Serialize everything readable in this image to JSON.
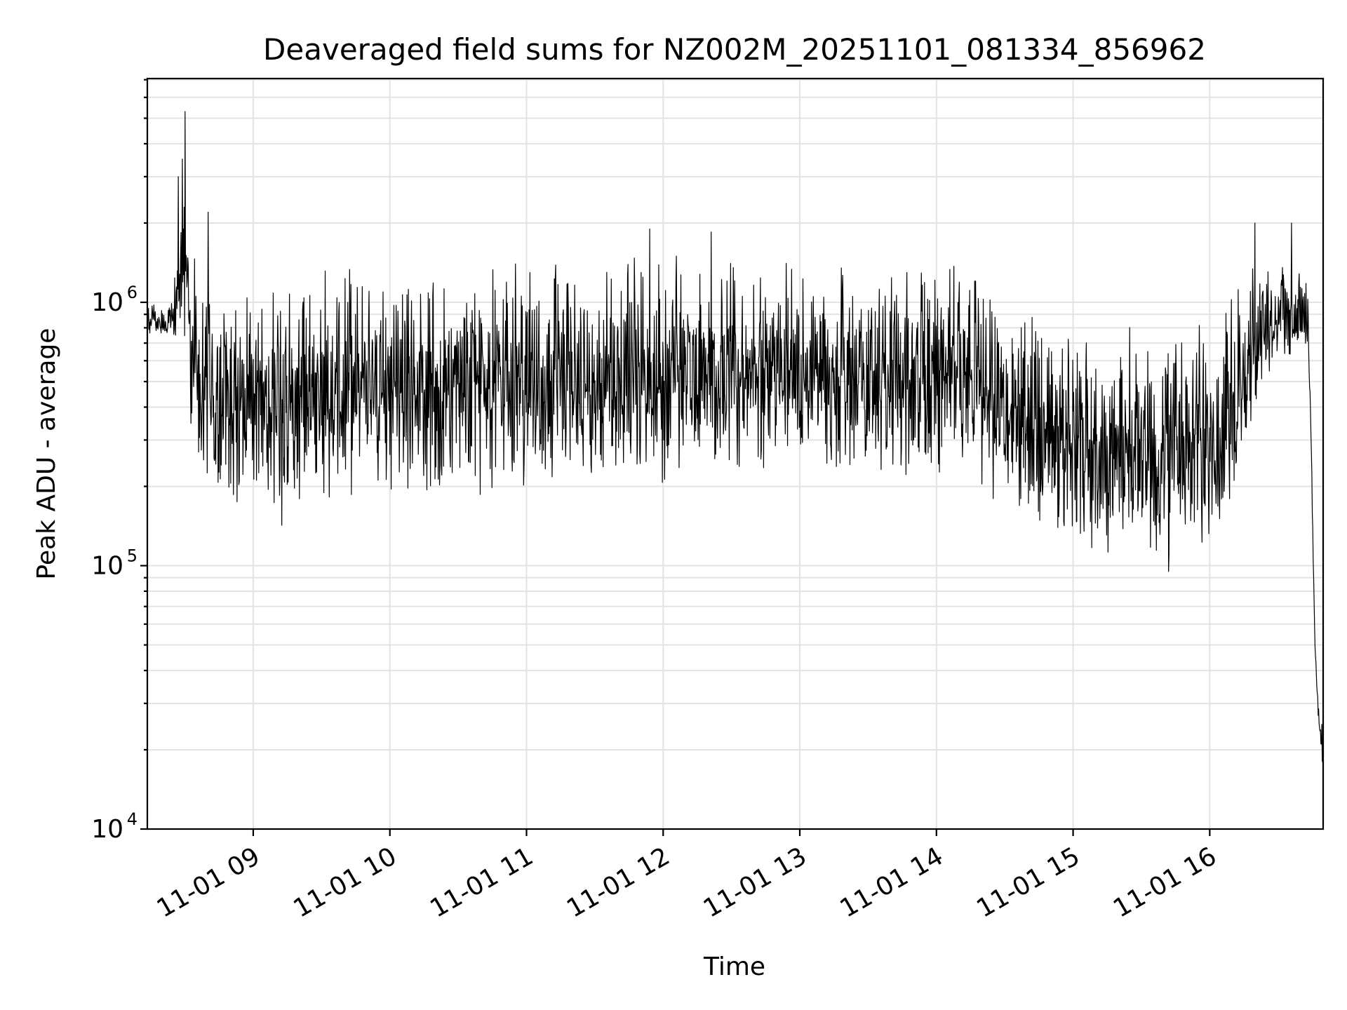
{
  "chart_data": {
    "type": "line",
    "title": "Deaveraged field sums for NZ002M_20251101_081334_856962",
    "xlabel": "Time",
    "ylabel": "Peak ADU - average",
    "yscale": "log",
    "ylim": [
      10000,
      7000000
    ],
    "xlim_hours": [
      8.225,
      16.83
    ],
    "grid": true,
    "line_color": "#000000",
    "x_ticks": [
      {
        "label": "11-01 09",
        "hour": 9
      },
      {
        "label": "11-01 10",
        "hour": 10
      },
      {
        "label": "11-01 11",
        "hour": 11
      },
      {
        "label": "11-01 12",
        "hour": 12
      },
      {
        "label": "11-01 13",
        "hour": 13
      },
      {
        "label": "11-01 14",
        "hour": 14
      },
      {
        "label": "11-01 15",
        "hour": 15
      },
      {
        "label": "11-01 16",
        "hour": 16
      }
    ],
    "y_ticks": [
      {
        "base": "10",
        "exp": "4",
        "value": 10000
      },
      {
        "base": "10",
        "exp": "5",
        "value": 100000
      },
      {
        "base": "10",
        "exp": "6",
        "value": 1000000
      }
    ],
    "series": [
      {
        "envelope": {
          "hour": [
            8.23,
            8.3,
            8.4,
            8.5,
            8.55,
            8.7,
            9.0,
            9.15,
            9.5,
            10.0,
            10.5,
            11.0,
            11.5,
            12.0,
            12.5,
            13.0,
            13.5,
            14.0,
            14.3,
            14.5,
            14.8,
            15.0,
            15.3,
            15.6,
            15.9,
            16.1,
            16.2,
            16.35,
            16.5,
            16.65,
            16.72,
            16.75,
            16.77,
            16.8,
            16.83
          ],
          "low": [
            700000,
            720000,
            700000,
            650000,
            220000,
            180000,
            150000,
            130000,
            170000,
            180000,
            180000,
            190000,
            200000,
            190000,
            210000,
            220000,
            200000,
            200000,
            190000,
            150000,
            125000,
            115000,
            105000,
            100000,
            105000,
            120000,
            150000,
            400000,
            550000,
            600000,
            650000,
            150000,
            50000,
            20000,
            15000
          ],
          "high": [
            1050000,
            1000000,
            1050000,
            3000000,
            1800000,
            1300000,
            1200000,
            1300000,
            1450000,
            1450000,
            1500000,
            1600000,
            1550000,
            1600000,
            1550000,
            1600000,
            1500000,
            1550000,
            1600000,
            1100000,
            900000,
            900000,
            850000,
            900000,
            850000,
            1000000,
            1200000,
            1600000,
            1700000,
            1500000,
            1200000,
            200000,
            50000,
            30000,
            28000
          ]
        },
        "spikes": [
          {
            "hour": 8.5,
            "value": 5300000
          },
          {
            "hour": 8.48,
            "value": 3500000
          },
          {
            "hour": 8.45,
            "value": 3000000
          },
          {
            "hour": 8.67,
            "value": 2200000
          },
          {
            "hour": 11.9,
            "value": 1900000
          },
          {
            "hour": 12.35,
            "value": 1850000
          },
          {
            "hour": 15.7,
            "value": 95000
          },
          {
            "hour": 16.33,
            "value": 2000000
          },
          {
            "hour": 16.6,
            "value": 2000000
          }
        ]
      }
    ]
  }
}
